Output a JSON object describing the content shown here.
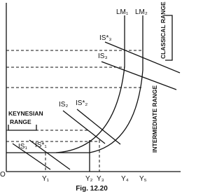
{
  "labels": {
    "lm1": "LM₁",
    "lm2": "LM₂",
    "is_star_3": "IS*₃",
    "is3": "IS₃",
    "classical": "CLASSICAL RANGE",
    "is2": "IS₂",
    "is_star_2": "IS*₂",
    "keynesian_1": "KEYNESIAN",
    "keynesian_2": "RANGE",
    "intermediate": "INTERMEDIATE RANGE",
    "is1": "IS₁",
    "is_star_1": "IS*₁",
    "origin": "O",
    "y1": "Y₁",
    "y2": "Y₂",
    "y3": "Y₃",
    "y4": "Y₄",
    "y5": "Y₅"
  },
  "caption": "Fig. 12.20"
}
